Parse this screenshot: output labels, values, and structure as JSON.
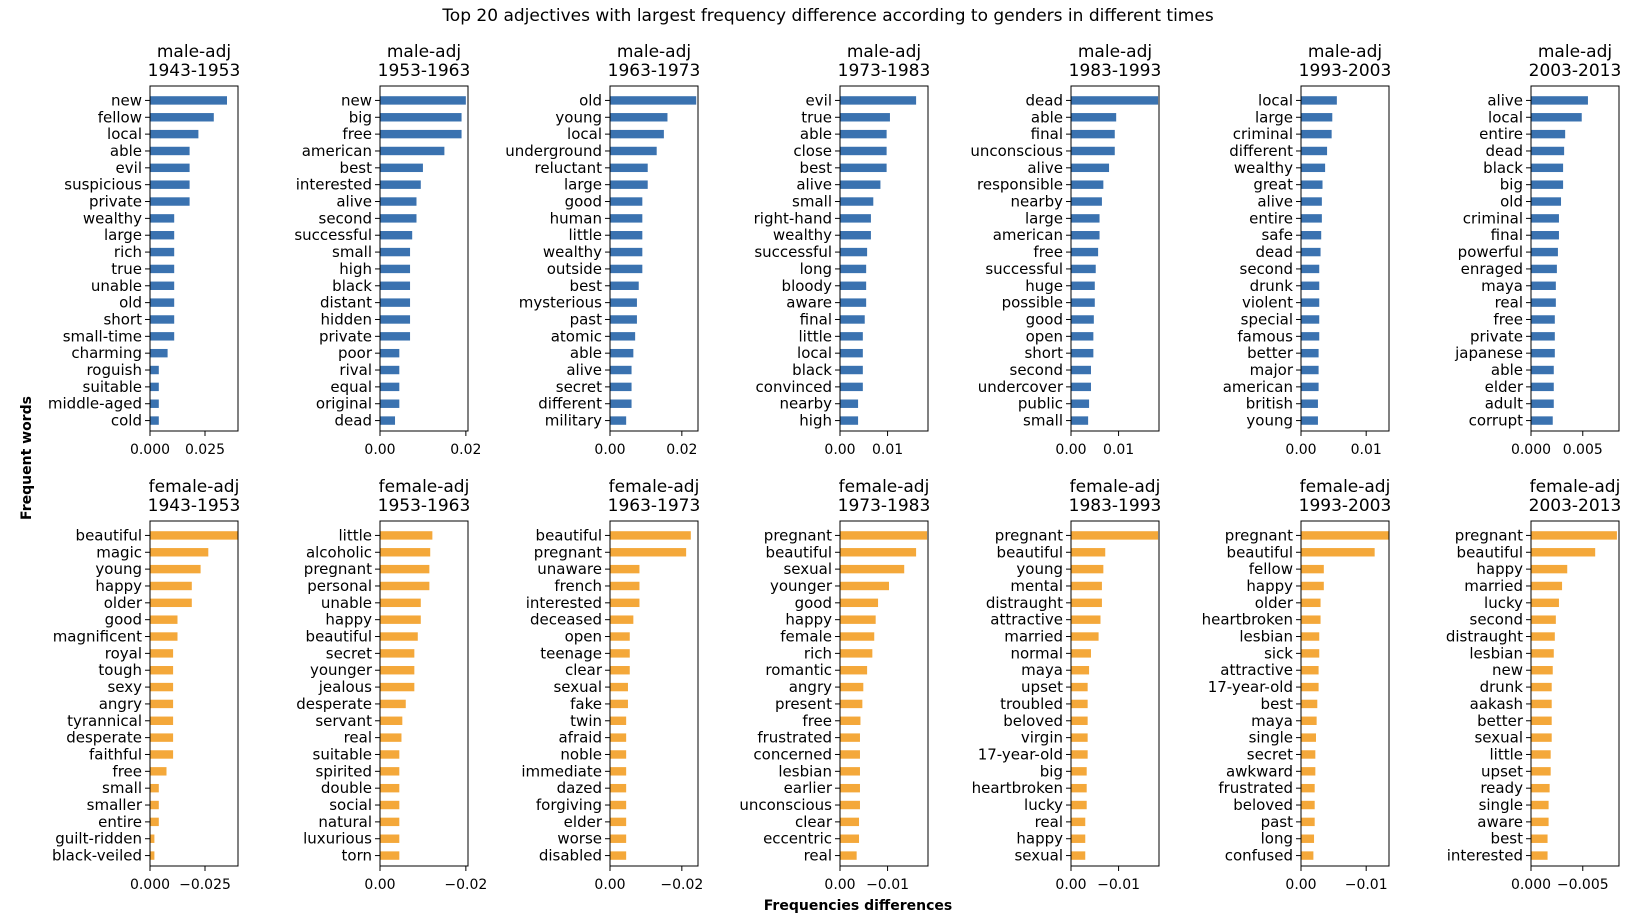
{
  "figure": {
    "title": "Top 20 adjectives with largest frequency difference according to genders in different times",
    "ylabel": "Frequent words",
    "xlabel": "Frequencies differences"
  },
  "colors": {
    "male": "#3a72b0",
    "female": "#f4a83a"
  },
  "chart_data": [
    {
      "type": "bar",
      "orientation": "horizontal",
      "title": "male-adj",
      "subtitle": "1943-1953",
      "categories": [
        "new",
        "fellow",
        "local",
        "able",
        "evil",
        "suspicious",
        "private",
        "wealthy",
        "large",
        "rich",
        "true",
        "unable",
        "old",
        "short",
        "small-time",
        "charming",
        "roguish",
        "suitable",
        "middle-aged",
        "cold"
      ],
      "values": [
        0.035,
        0.029,
        0.022,
        0.018,
        0.018,
        0.018,
        0.018,
        0.011,
        0.011,
        0.011,
        0.011,
        0.011,
        0.011,
        0.011,
        0.011,
        0.008,
        0.004,
        0.004,
        0.004,
        0.004
      ],
      "xlim": [
        0,
        0.04
      ],
      "xticks": [
        0.0,
        0.025
      ],
      "xticklabels": [
        "0.000",
        "0.025"
      ]
    },
    {
      "type": "bar",
      "orientation": "horizontal",
      "title": "male-adj",
      "subtitle": "1953-1963",
      "categories": [
        "new",
        "big",
        "free",
        "american",
        "best",
        "interested",
        "alive",
        "second",
        "successful",
        "small",
        "high",
        "black",
        "distant",
        "hidden",
        "private",
        "poor",
        "rival",
        "equal",
        "original",
        "dead"
      ],
      "values": [
        0.02,
        0.019,
        0.019,
        0.015,
        0.01,
        0.0095,
        0.0085,
        0.0085,
        0.0075,
        0.007,
        0.007,
        0.007,
        0.007,
        0.007,
        0.007,
        0.0045,
        0.0045,
        0.0045,
        0.0045,
        0.0035
      ],
      "xlim": [
        0,
        0.0205
      ],
      "xticks": [
        0.0,
        0.02
      ],
      "xticklabels": [
        "0.00",
        "0.02"
      ]
    },
    {
      "type": "bar",
      "orientation": "horizontal",
      "title": "male-adj",
      "subtitle": "1963-1973",
      "categories": [
        "old",
        "young",
        "local",
        "underground",
        "reluctant",
        "large",
        "good",
        "human",
        "little",
        "wealthy",
        "outside",
        "best",
        "mysterious",
        "past",
        "atomic",
        "able",
        "alive",
        "secret",
        "different",
        "military"
      ],
      "values": [
        0.024,
        0.016,
        0.015,
        0.013,
        0.0105,
        0.0105,
        0.009,
        0.009,
        0.009,
        0.009,
        0.009,
        0.008,
        0.0075,
        0.0075,
        0.007,
        0.0065,
        0.006,
        0.006,
        0.006,
        0.0045
      ],
      "xlim": [
        0,
        0.0245
      ],
      "xticks": [
        0.0,
        0.02
      ],
      "xticklabels": [
        "0.00",
        "0.02"
      ]
    },
    {
      "type": "bar",
      "orientation": "horizontal",
      "title": "male-adj",
      "subtitle": "1973-1983",
      "categories": [
        "evil",
        "true",
        "able",
        "close",
        "best",
        "alive",
        "small",
        "right-hand",
        "wealthy",
        "successful",
        "long",
        "bloody",
        "aware",
        "final",
        "little",
        "local",
        "black",
        "convinced",
        "nearby",
        "high"
      ],
      "values": [
        0.016,
        0.0105,
        0.0098,
        0.0098,
        0.0098,
        0.0085,
        0.007,
        0.0065,
        0.0065,
        0.0057,
        0.0055,
        0.0055,
        0.0055,
        0.0052,
        0.0048,
        0.0048,
        0.0048,
        0.0048,
        0.0038,
        0.0038
      ],
      "xlim": [
        0,
        0.0185
      ],
      "xticks": [
        0.0,
        0.01
      ],
      "xticklabels": [
        "0.00",
        "0.01"
      ]
    },
    {
      "type": "bar",
      "orientation": "horizontal",
      "title": "male-adj",
      "subtitle": "1983-1993",
      "categories": [
        "dead",
        "able",
        "final",
        "unconscious",
        "alive",
        "responsible",
        "nearby",
        "large",
        "american",
        "free",
        "successful",
        "huge",
        "possible",
        "good",
        "open",
        "short",
        "second",
        "undercover",
        "public",
        "small"
      ],
      "values": [
        0.0183,
        0.0095,
        0.0092,
        0.0092,
        0.008,
        0.0068,
        0.0065,
        0.006,
        0.006,
        0.0057,
        0.0052,
        0.005,
        0.005,
        0.0048,
        0.0047,
        0.0047,
        0.0042,
        0.0042,
        0.0038,
        0.0036
      ],
      "xlim": [
        0,
        0.0185
      ],
      "xticks": [
        0.0,
        0.01
      ],
      "xticklabels": [
        "0.00",
        "0.01"
      ]
    },
    {
      "type": "bar",
      "orientation": "horizontal",
      "title": "male-adj",
      "subtitle": "1993-2003",
      "categories": [
        "local",
        "large",
        "criminal",
        "different",
        "wealthy",
        "great",
        "alive",
        "entire",
        "safe",
        "dead",
        "second",
        "drunk",
        "violent",
        "special",
        "famous",
        "better",
        "major",
        "american",
        "british",
        "young"
      ],
      "values": [
        0.0055,
        0.0048,
        0.0047,
        0.004,
        0.0037,
        0.0033,
        0.0032,
        0.0032,
        0.0031,
        0.003,
        0.0028,
        0.0028,
        0.0028,
        0.0028,
        0.0028,
        0.0027,
        0.0027,
        0.0027,
        0.0026,
        0.0026
      ],
      "xlim": [
        0,
        0.0135
      ],
      "xticks": [
        0.0,
        0.01
      ],
      "xticklabels": [
        "0.00",
        "0.01"
      ]
    },
    {
      "type": "bar",
      "orientation": "horizontal",
      "title": "male-adj",
      "subtitle": "2003-2013",
      "categories": [
        "alive",
        "local",
        "entire",
        "dead",
        "black",
        "big",
        "old",
        "criminal",
        "final",
        "powerful",
        "enraged",
        "maya",
        "real",
        "free",
        "private",
        "japanese",
        "able",
        "elder",
        "adult",
        "corrupt"
      ],
      "values": [
        0.0055,
        0.0049,
        0.0033,
        0.0032,
        0.0031,
        0.0031,
        0.0029,
        0.0027,
        0.0027,
        0.0026,
        0.0025,
        0.0024,
        0.0024,
        0.0023,
        0.0023,
        0.0023,
        0.0022,
        0.0022,
        0.0022,
        0.0021
      ],
      "xlim": [
        0,
        0.0085
      ],
      "xticks": [
        0.0,
        0.005
      ],
      "xticklabels": [
        "0.000",
        "0.005"
      ]
    },
    {
      "type": "bar",
      "orientation": "horizontal",
      "title": "female-adj",
      "subtitle": "1943-1953",
      "categories": [
        "beautiful",
        "magic",
        "young",
        "happy",
        "older",
        "good",
        "magnificent",
        "royal",
        "tough",
        "sexy",
        "angry",
        "tyrannical",
        "desperate",
        "faithful",
        "free",
        "small",
        "smaller",
        "entire",
        "guilt-ridden",
        "black-veiled"
      ],
      "values": [
        -0.04,
        -0.0265,
        -0.023,
        -0.019,
        -0.019,
        -0.0125,
        -0.0125,
        -0.0105,
        -0.0105,
        -0.0105,
        -0.0105,
        -0.0105,
        -0.0105,
        -0.0105,
        -0.0075,
        -0.004,
        -0.004,
        -0.004,
        -0.002,
        -0.002
      ],
      "xlim": [
        0,
        -0.04
      ],
      "xticks": [
        0.0,
        -0.025
      ],
      "xticklabels": [
        "0.000",
        "−0.025"
      ]
    },
    {
      "type": "bar",
      "orientation": "horizontal",
      "title": "female-adj",
      "subtitle": "1953-1963",
      "categories": [
        "little",
        "alcoholic",
        "pregnant",
        "personal",
        "unable",
        "happy",
        "beautiful",
        "secret",
        "younger",
        "jealous",
        "desperate",
        "servant",
        "real",
        "suitable",
        "spirited",
        "double",
        "social",
        "natural",
        "luxurious",
        "torn"
      ],
      "values": [
        -0.0122,
        -0.0117,
        -0.0115,
        -0.0115,
        -0.0095,
        -0.0095,
        -0.0088,
        -0.008,
        -0.008,
        -0.008,
        -0.006,
        -0.0052,
        -0.005,
        -0.0045,
        -0.0045,
        -0.0045,
        -0.0045,
        -0.0045,
        -0.0045,
        -0.0045
      ],
      "xlim": [
        0,
        -0.0205
      ],
      "xticks": [
        0.0,
        -0.02
      ],
      "xticklabels": [
        "0.00",
        "−0.02"
      ]
    },
    {
      "type": "bar",
      "orientation": "horizontal",
      "title": "female-adj",
      "subtitle": "1963-1973",
      "categories": [
        "beautiful",
        "pregnant",
        "unaware",
        "french",
        "interested",
        "deceased",
        "open",
        "teenage",
        "clear",
        "sexual",
        "fake",
        "twin",
        "afraid",
        "noble",
        "immediate",
        "dazed",
        "forgiving",
        "elder",
        "worse",
        "disabled"
      ],
      "values": [
        -0.0225,
        -0.0212,
        -0.0082,
        -0.0082,
        -0.0082,
        -0.0065,
        -0.0055,
        -0.0055,
        -0.0055,
        -0.005,
        -0.005,
        -0.0045,
        -0.0045,
        -0.0045,
        -0.0045,
        -0.0045,
        -0.0045,
        -0.0045,
        -0.0045,
        -0.0045
      ],
      "xlim": [
        0,
        -0.0245
      ],
      "xticks": [
        0.0,
        -0.02
      ],
      "xticklabels": [
        "0.00",
        "−0.02"
      ]
    },
    {
      "type": "bar",
      "orientation": "horizontal",
      "title": "female-adj",
      "subtitle": "1973-1983",
      "categories": [
        "pregnant",
        "beautiful",
        "sexual",
        "younger",
        "good",
        "happy",
        "female",
        "rich",
        "romantic",
        "angry",
        "present",
        "free",
        "frustrated",
        "concerned",
        "lesbian",
        "earlier",
        "unconscious",
        "clear",
        "eccentric",
        "real"
      ],
      "values": [
        -0.0183,
        -0.016,
        -0.0135,
        -0.0103,
        -0.008,
        -0.0075,
        -0.0072,
        -0.0068,
        -0.0057,
        -0.0049,
        -0.0047,
        -0.0043,
        -0.0042,
        -0.0042,
        -0.0042,
        -0.0042,
        -0.0042,
        -0.004,
        -0.004,
        -0.0035
      ],
      "xlim": [
        0,
        -0.0185
      ],
      "xticks": [
        0.0,
        -0.01
      ],
      "xticklabels": [
        "0.00",
        "−0.01"
      ]
    },
    {
      "type": "bar",
      "orientation": "horizontal",
      "title": "female-adj",
      "subtitle": "1983-1993",
      "categories": [
        "pregnant",
        "beautiful",
        "young",
        "mental",
        "distraught",
        "attractive",
        "married",
        "normal",
        "maya",
        "upset",
        "troubled",
        "beloved",
        "virgin",
        "17-year-old",
        "big",
        "heartbroken",
        "lucky",
        "real",
        "happy",
        "sexual"
      ],
      "values": [
        -0.0183,
        -0.0072,
        -0.0068,
        -0.0065,
        -0.0065,
        -0.0062,
        -0.0058,
        -0.0042,
        -0.0038,
        -0.0035,
        -0.0035,
        -0.0035,
        -0.0035,
        -0.0035,
        -0.0033,
        -0.0033,
        -0.0033,
        -0.003,
        -0.003,
        -0.003
      ],
      "xlim": [
        0,
        -0.0185
      ],
      "xticks": [
        0.0,
        -0.01
      ],
      "xticklabels": [
        "0.00",
        "−0.01"
      ]
    },
    {
      "type": "bar",
      "orientation": "horizontal",
      "title": "female-adj",
      "subtitle": "1993-2003",
      "categories": [
        "pregnant",
        "beautiful",
        "fellow",
        "happy",
        "older",
        "heartbroken",
        "lesbian",
        "sick",
        "attractive",
        "17-year-old",
        "best",
        "maya",
        "single",
        "secret",
        "awkward",
        "frustrated",
        "beloved",
        "past",
        "long",
        "confused"
      ],
      "values": [
        -0.0135,
        -0.0113,
        -0.0035,
        -0.0035,
        -0.003,
        -0.003,
        -0.0028,
        -0.0028,
        -0.0027,
        -0.0027,
        -0.0025,
        -0.0024,
        -0.0023,
        -0.0022,
        -0.0022,
        -0.0021,
        -0.0021,
        -0.0021,
        -0.002,
        -0.0019
      ],
      "xlim": [
        0,
        -0.0135
      ],
      "xticks": [
        0.0,
        -0.01
      ],
      "xticklabels": [
        "0.00",
        "−0.01"
      ]
    },
    {
      "type": "bar",
      "orientation": "horizontal",
      "title": "female-adj",
      "subtitle": "2003-2013",
      "categories": [
        "pregnant",
        "beautiful",
        "happy",
        "married",
        "lucky",
        "second",
        "distraught",
        "lesbian",
        "new",
        "drunk",
        "aakash",
        "better",
        "sexual",
        "little",
        "upset",
        "ready",
        "single",
        "aware",
        "best",
        "interested"
      ],
      "values": [
        -0.0083,
        -0.0062,
        -0.0035,
        -0.003,
        -0.0027,
        -0.0024,
        -0.0023,
        -0.0022,
        -0.0021,
        -0.002,
        -0.002,
        -0.002,
        -0.002,
        -0.0019,
        -0.0019,
        -0.0018,
        -0.0017,
        -0.0017,
        -0.0016,
        -0.0016
      ],
      "xlim": [
        0,
        -0.0085
      ],
      "xticks": [
        0.0,
        -0.005
      ],
      "xticklabels": [
        "0.000",
        "−0.005"
      ]
    }
  ]
}
